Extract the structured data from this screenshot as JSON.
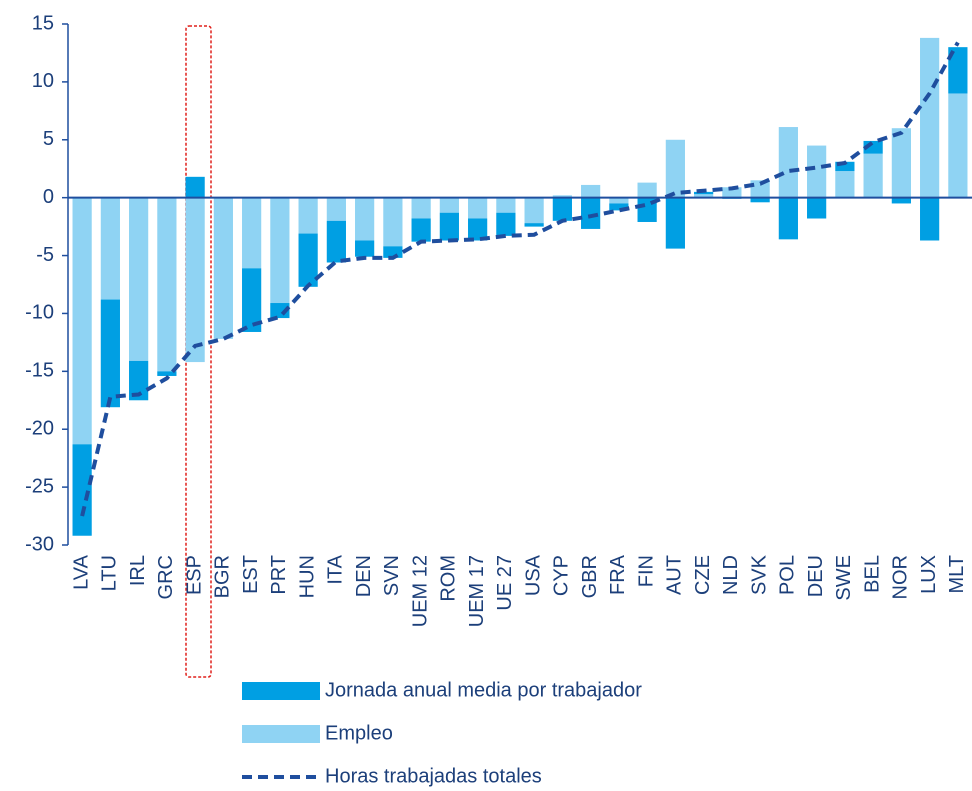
{
  "chart_data": {
    "type": "bar",
    "categories": [
      "LVA",
      "LTU",
      "IRL",
      "GRC",
      "ESP",
      "BGR",
      "EST",
      "PRT",
      "HUN",
      "ITA",
      "DEN",
      "SVN",
      "UEM 12",
      "ROM",
      "UEM 17",
      "UE 27",
      "USA",
      "CYP",
      "GBR",
      "FRA",
      "FIN",
      "AUT",
      "CZE",
      "NLD",
      "SVK",
      "POL",
      "DEU",
      "SWE",
      "BEL",
      "NOR",
      "LUX",
      "MLT"
    ],
    "series": [
      {
        "name": "Jornada anual media por trabajador",
        "color": "#009fe3",
        "kind": "bar",
        "values": [
          -7.9,
          -9.3,
          -3.4,
          -0.4,
          1.8,
          0,
          -5.5,
          -1.3,
          -4.6,
          -3.6,
          -1.4,
          -1.0,
          -2.0,
          -2.4,
          -1.9,
          -2.0,
          -0.3,
          -2.0,
          -2.7,
          -0.6,
          -2.1,
          -4.4,
          0.2,
          -0.1,
          -0.4,
          -3.6,
          -1.8,
          0.8,
          1.1,
          -0.5,
          -3.7,
          4.0
        ]
      },
      {
        "name": "Empleo",
        "color": "#8fd3f3",
        "kind": "bar",
        "values": [
          -21.3,
          -8.8,
          -14.1,
          -15.0,
          -14.2,
          -12.2,
          -6.1,
          -9.1,
          -3.1,
          -2.0,
          -3.7,
          -4.2,
          -1.8,
          -1.3,
          -1.8,
          -1.3,
          -2.2,
          0.2,
          1.1,
          -0.5,
          1.3,
          5.0,
          0.3,
          0.9,
          1.5,
          6.1,
          4.5,
          2.3,
          3.8,
          6.0,
          13.8,
          9.0
        ]
      },
      {
        "name": "Horas trabajadas totales",
        "color": "#1f4e9e",
        "kind": "line",
        "style": "dashed",
        "values": [
          -27.5,
          -17.2,
          -17.0,
          -15.6,
          -12.8,
          -12.2,
          -11.0,
          -10.3,
          -7.6,
          -5.5,
          -5.2,
          -5.2,
          -3.8,
          -3.7,
          -3.6,
          -3.3,
          -3.2,
          -2.0,
          -1.6,
          -1.1,
          -0.6,
          0.4,
          0.6,
          0.8,
          1.2,
          2.3,
          2.6,
          3.0,
          4.8,
          5.6,
          9.0,
          13.4
        ]
      }
    ],
    "ylim": [
      -30,
      15
    ],
    "yticks": [
      -30,
      -25,
      -20,
      -15,
      -10,
      -5,
      0,
      5,
      10,
      15
    ],
    "grid": false
  }
}
